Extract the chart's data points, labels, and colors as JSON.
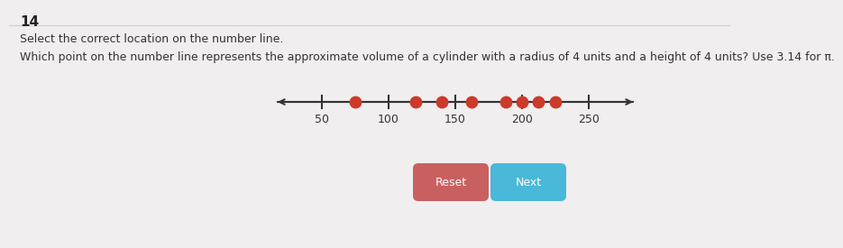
{
  "title_number": "14",
  "instruction": "Select the correct location on the number line.",
  "question": "Which point on the number line represents the approximate volume of a cylinder with a radius of 4 units and a height of 4 units? Use 3.14 for π.",
  "number_line": {
    "ticks": [
      50,
      100,
      150,
      200,
      250
    ],
    "val_min": 25,
    "val_max": 275
  },
  "red_dots": [
    75,
    120,
    140,
    162,
    188,
    200,
    212,
    225
  ],
  "dot_color": "#cc3a2a",
  "dot_size": 100,
  "bg_color": "#f0eeee",
  "reset_btn": {
    "label": "Reset",
    "color": "#c96060",
    "text_color": "white"
  },
  "next_btn": {
    "label": "Next",
    "color": "#4ab8d8",
    "text_color": "white"
  },
  "font_size_title": 11,
  "font_size_instruction": 9,
  "font_size_question": 9,
  "font_size_ticks": 9,
  "font_size_btn": 9
}
